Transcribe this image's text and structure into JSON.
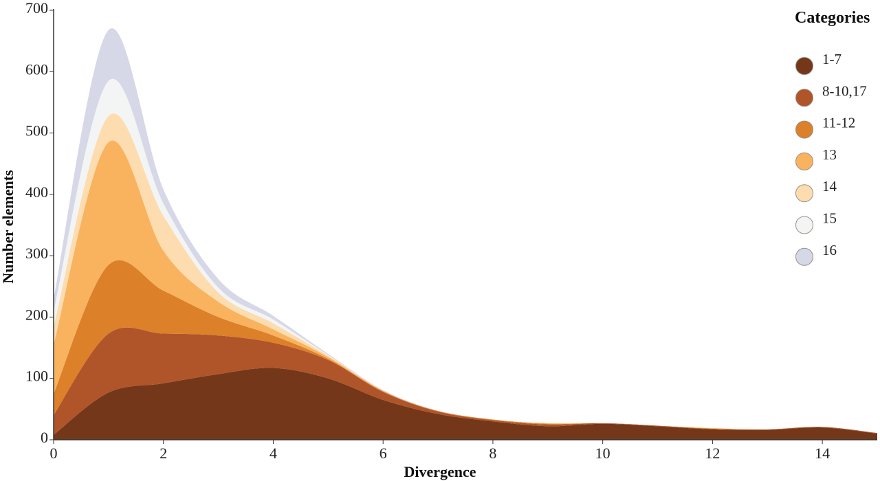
{
  "chart_data": {
    "type": "area",
    "stacked": true,
    "title": "",
    "xlabel": "Divergence",
    "ylabel": "Number elements",
    "xlim": [
      0,
      15
    ],
    "ylim": [
      0,
      700
    ],
    "x_ticks": [
      "0",
      "2",
      "4",
      "6",
      "8",
      "10",
      "12",
      "14"
    ],
    "y_ticks": [
      "0",
      "100",
      "200",
      "300",
      "400",
      "500",
      "600",
      "700"
    ],
    "x": [
      0,
      1,
      2,
      3,
      4,
      5,
      6,
      7,
      8,
      9,
      10,
      11,
      12,
      13,
      14,
      15
    ],
    "legend_title": "Categories",
    "legend_position": "top-right",
    "grid": false,
    "series": [
      {
        "name": "1-7",
        "color": "#74371a",
        "values": [
          8,
          77,
          92,
          107,
          117,
          100,
          65,
          42,
          30,
          22,
          26,
          22,
          17,
          16,
          20,
          10
        ]
      },
      {
        "name": "8-10,17",
        "color": "#b0542a",
        "values": [
          32,
          96,
          81,
          63,
          41,
          30,
          13,
          4,
          2,
          3,
          1,
          1,
          1,
          1,
          1,
          1
        ]
      },
      {
        "name": "11-12",
        "color": "#dc8029",
        "values": [
          35,
          112,
          70,
          30,
          12,
          2,
          1,
          1,
          1,
          1,
          0,
          0,
          0,
          0,
          0,
          0
        ]
      },
      {
        "name": "13",
        "color": "#f9b35e",
        "values": [
          80,
          200,
          65,
          25,
          10,
          3,
          1,
          0,
          0,
          1,
          0,
          0,
          1,
          0,
          0,
          0
        ]
      },
      {
        "name": "14",
        "color": "#fddcb0",
        "values": [
          30,
          43,
          57,
          15,
          10,
          2,
          0,
          0,
          0,
          0,
          0,
          0,
          0,
          0,
          0,
          0
        ]
      },
      {
        "name": "15",
        "color": "#f3f5f4",
        "values": [
          25,
          57,
          20,
          8,
          6,
          1,
          0,
          0,
          0,
          0,
          0,
          0,
          0,
          0,
          0,
          0
        ]
      },
      {
        "name": "16",
        "color": "#d6d8e8",
        "values": [
          20,
          83,
          23,
          14,
          6,
          2,
          1,
          0,
          0,
          0,
          0,
          0,
          0,
          0,
          0,
          0
        ]
      }
    ]
  }
}
